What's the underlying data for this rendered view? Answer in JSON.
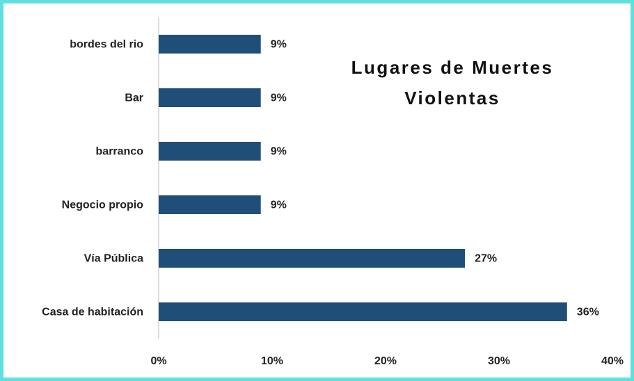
{
  "chart_data": {
    "type": "bar",
    "orientation": "horizontal",
    "title": "Lugares de Muertes Violentas",
    "categories": [
      "bordes del rio",
      "Bar",
      "barranco",
      "Negocio propio",
      "Vía Pública",
      "Casa de habitación"
    ],
    "values": [
      9,
      9,
      9,
      9,
      27,
      36
    ],
    "value_labels": [
      "9%",
      "9%",
      "9%",
      "9%",
      "27%",
      "36%"
    ],
    "color": "#1f4e79",
    "xlim": [
      0,
      40
    ],
    "xticks": [
      {
        "value": 0,
        "label": "0%"
      },
      {
        "value": 10,
        "label": "10%"
      },
      {
        "value": 20,
        "label": "20%"
      },
      {
        "value": 30,
        "label": "30%"
      },
      {
        "value": 40,
        "label": "40%"
      }
    ],
    "grid": false
  }
}
